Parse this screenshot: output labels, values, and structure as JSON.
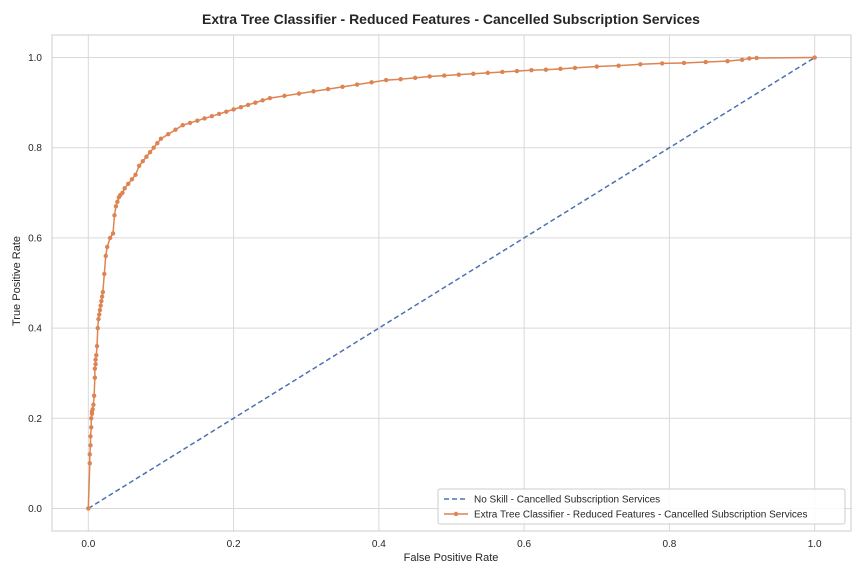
{
  "chart_data": {
    "type": "line",
    "title": "Extra Tree Classifier - Reduced Features - Cancelled Subscription Services",
    "xlabel": "False Positive Rate",
    "ylabel": "True Positive Rate",
    "xlim": [
      -0.05,
      1.05
    ],
    "ylim": [
      -0.05,
      1.05
    ],
    "xticks": [
      "0.0",
      "0.2",
      "0.4",
      "0.6",
      "0.8",
      "1.0"
    ],
    "yticks": [
      "0.0",
      "0.2",
      "0.4",
      "0.6",
      "0.8",
      "1.0"
    ],
    "grid": true,
    "legend_position": "bottom-right",
    "series": [
      {
        "name": "No Skill - Cancelled Subscription Services",
        "color": "#4c72b0",
        "style": "dashed",
        "marker": "none",
        "x": [
          0,
          1
        ],
        "y": [
          0,
          1
        ]
      },
      {
        "name": "Extra Tree Classifier - Reduced Features - Cancelled Subscription Services",
        "color": "#dd8452",
        "style": "solid",
        "marker": "dot",
        "x": [
          0,
          0.002,
          0.002,
          0.003,
          0.003,
          0.004,
          0.004,
          0.005,
          0.005,
          0.006,
          0.007,
          0.008,
          0.009,
          0.009,
          0.01,
          0.01,
          0.011,
          0.012,
          0.013,
          0.014,
          0.015,
          0.016,
          0.017,
          0.018,
          0.019,
          0.02,
          0.022,
          0.024,
          0.026,
          0.03,
          0.034,
          0.036,
          0.038,
          0.04,
          0.042,
          0.044,
          0.047,
          0.05,
          0.055,
          0.06,
          0.065,
          0.07,
          0.075,
          0.08,
          0.085,
          0.09,
          0.095,
          0.1,
          0.11,
          0.12,
          0.13,
          0.14,
          0.15,
          0.16,
          0.17,
          0.18,
          0.19,
          0.2,
          0.21,
          0.22,
          0.23,
          0.24,
          0.25,
          0.27,
          0.29,
          0.31,
          0.33,
          0.35,
          0.37,
          0.39,
          0.41,
          0.43,
          0.45,
          0.47,
          0.49,
          0.51,
          0.53,
          0.55,
          0.57,
          0.59,
          0.61,
          0.63,
          0.65,
          0.67,
          0.7,
          0.73,
          0.76,
          0.79,
          0.82,
          0.85,
          0.88,
          0.9,
          0.91,
          0.92,
          1.0
        ],
        "y": [
          0,
          0.1,
          0.12,
          0.14,
          0.16,
          0.18,
          0.2,
          0.21,
          0.215,
          0.22,
          0.23,
          0.25,
          0.29,
          0.31,
          0.32,
          0.33,
          0.34,
          0.36,
          0.4,
          0.42,
          0.43,
          0.44,
          0.45,
          0.46,
          0.47,
          0.48,
          0.52,
          0.56,
          0.58,
          0.6,
          0.61,
          0.65,
          0.67,
          0.68,
          0.69,
          0.695,
          0.7,
          0.71,
          0.72,
          0.73,
          0.74,
          0.76,
          0.77,
          0.78,
          0.79,
          0.8,
          0.81,
          0.82,
          0.83,
          0.84,
          0.85,
          0.855,
          0.86,
          0.865,
          0.87,
          0.875,
          0.88,
          0.885,
          0.89,
          0.895,
          0.9,
          0.905,
          0.91,
          0.915,
          0.92,
          0.925,
          0.93,
          0.935,
          0.94,
          0.945,
          0.95,
          0.952,
          0.955,
          0.958,
          0.96,
          0.962,
          0.964,
          0.966,
          0.968,
          0.97,
          0.972,
          0.973,
          0.975,
          0.977,
          0.98,
          0.982,
          0.985,
          0.987,
          0.988,
          0.99,
          0.992,
          0.995,
          0.998,
          0.999,
          1.0
        ]
      }
    ]
  }
}
